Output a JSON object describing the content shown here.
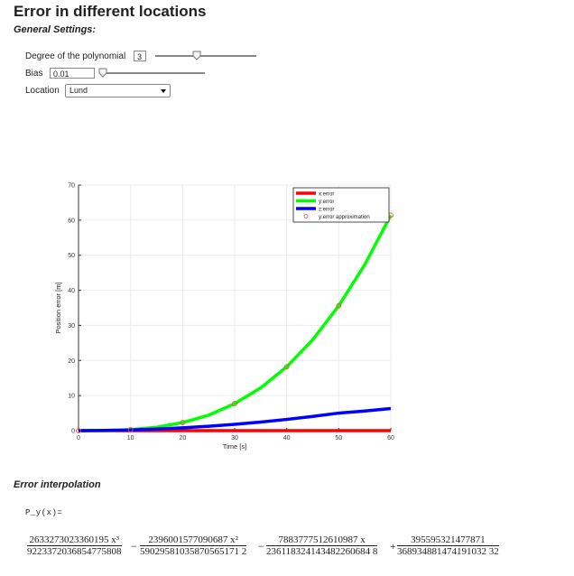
{
  "title": "Error in different  locations",
  "general_settings": {
    "heading": "General Settings:",
    "degree": {
      "label": "Degree of the polynomial",
      "value": "3"
    },
    "bias": {
      "label": "Bias",
      "value": "0.01"
    },
    "location": {
      "label": "Location",
      "selected": "Lund"
    }
  },
  "chart_data": {
    "type": "line",
    "xlabel": "Time [s]",
    "ylabel": "Position error [m]",
    "xlim": [
      0,
      60
    ],
    "ylim": [
      0,
      70
    ],
    "xticks": [
      "0",
      "10",
      "20",
      "30",
      "40",
      "50",
      "60"
    ],
    "yticks": [
      "0",
      "10",
      "20",
      "30",
      "40",
      "50",
      "60",
      "70"
    ],
    "grid": true,
    "legend_position": "top-right",
    "series": [
      {
        "name": "x:error",
        "color": "#ff0000",
        "x": [
          0,
          60
        ],
        "y": [
          0,
          0
        ]
      },
      {
        "name": "y:error",
        "color": "#00ff00",
        "x": [
          0,
          5,
          10,
          15,
          20,
          25,
          30,
          35,
          40,
          45,
          50,
          55,
          60
        ],
        "y": [
          0,
          0.03,
          0.28,
          0.96,
          2.3,
          4.4,
          7.7,
          12.2,
          18.2,
          25.9,
          35.6,
          47.3,
          61.4
        ]
      },
      {
        "name": "z:error",
        "color": "#0000ff",
        "x": [
          0,
          5,
          10,
          15,
          20,
          25,
          30,
          35,
          40,
          45,
          50,
          55,
          60
        ],
        "y": [
          0,
          0.05,
          0.2,
          0.45,
          0.8,
          1.25,
          1.8,
          2.45,
          3.2,
          4.05,
          5.0,
          5.6,
          6.3
        ]
      },
      {
        "name": "y:error approximation",
        "color": "#ff4444",
        "marker": "circle",
        "x": [
          0,
          10,
          20,
          30,
          40,
          50,
          60
        ],
        "y": [
          0,
          0.28,
          2.3,
          7.7,
          18.2,
          35.6,
          61.4
        ]
      }
    ]
  },
  "interpolation": {
    "heading": "Error interpolation",
    "label": "P_y(x)=",
    "terms": [
      {
        "sign": "",
        "num": "2633273023360195 x³",
        "den": "9223372036854775808"
      },
      {
        "sign": "−",
        "num": "2396001577090687 x²",
        "den": "59029581035870565171 2"
      },
      {
        "sign": "−",
        "num": "7883777512610987 x",
        "den": "236118324143482260684 8"
      },
      {
        "sign": "+",
        "num": "395595321477871",
        "den": "368934881474191032 32"
      }
    ]
  }
}
